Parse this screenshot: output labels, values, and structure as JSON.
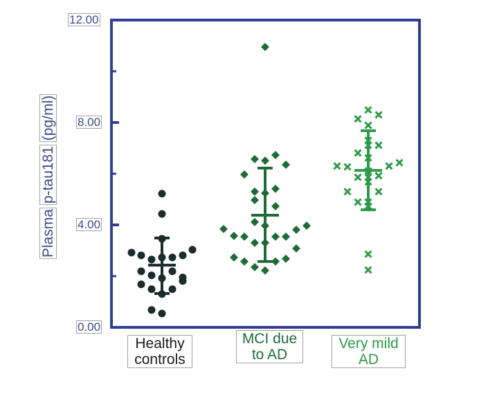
{
  "chart_data": {
    "type": "scatter",
    "subtype": "dot-plot with mean and SD bars",
    "title": "",
    "ylabel": "Plasma p-tau181 (pg/ml)",
    "ylabel_parts": [
      "Plasma",
      "p-tau181",
      "(pg/ml)"
    ],
    "xlabel": "",
    "ylim": [
      0,
      12
    ],
    "yticks": [
      0,
      4,
      8,
      12
    ],
    "ytick_labels": [
      "0.00",
      "4.00",
      "8.00",
      "12.00"
    ],
    "minor_yticks": [
      2,
      6,
      10
    ],
    "grid": false,
    "categories": [
      "Healthy controls",
      "MCI due to AD",
      "Very mild AD"
    ],
    "category_label_lines": [
      [
        "Healthy",
        "controls"
      ],
      [
        "MCI due",
        "to AD"
      ],
      [
        "Very mild",
        "AD"
      ]
    ],
    "series": [
      {
        "name": "Healthy controls",
        "marker": "circle",
        "color": "#1c2b2b",
        "mean": 2.43,
        "sd_low": 1.32,
        "sd_high": 3.49,
        "points": [
          {
            "dx": 0,
            "v": 5.22
          },
          {
            "dx": 0,
            "v": 4.43
          },
          {
            "dx": 0,
            "v": 3.46
          },
          {
            "dx": -44,
            "v": 2.92
          },
          {
            "dx": -30,
            "v": 2.81
          },
          {
            "dx": -15,
            "v": 2.65
          },
          {
            "dx": 0,
            "v": 2.73
          },
          {
            "dx": 15,
            "v": 2.73
          },
          {
            "dx": 30,
            "v": 2.81
          },
          {
            "dx": 44,
            "v": 3.03
          },
          {
            "dx": -30,
            "v": 2.19
          },
          {
            "dx": -15,
            "v": 2.03
          },
          {
            "dx": 0,
            "v": 1.92
          },
          {
            "dx": 15,
            "v": 2.19
          },
          {
            "dx": 30,
            "v": 1.95
          },
          {
            "dx": -30,
            "v": 1.68
          },
          {
            "dx": -15,
            "v": 1.49
          },
          {
            "dx": 0,
            "v": 1.3
          },
          {
            "dx": 15,
            "v": 1.49
          },
          {
            "dx": 30,
            "v": 1.81
          },
          {
            "dx": -15,
            "v": 0.68
          },
          {
            "dx": 0,
            "v": 0.54
          }
        ]
      },
      {
        "name": "MCI due to AD",
        "marker": "diamond",
        "color": "#1f6b38",
        "mean": 4.38,
        "sd_low": 2.57,
        "sd_high": 6.22,
        "points": [
          {
            "dx": 0,
            "v": 10.95
          },
          {
            "dx": -15,
            "v": 6.57
          },
          {
            "dx": 0,
            "v": 6.51
          },
          {
            "dx": 15,
            "v": 6.73
          },
          {
            "dx": 30,
            "v": 6.35
          },
          {
            "dx": -30,
            "v": 5.97
          },
          {
            "dx": -15,
            "v": 5.3
          },
          {
            "dx": 0,
            "v": 5.24
          },
          {
            "dx": 15,
            "v": 5.41
          },
          {
            "dx": -15,
            "v": 4.97
          },
          {
            "dx": 15,
            "v": 4.73
          },
          {
            "dx": -15,
            "v": 4.11
          },
          {
            "dx": 0,
            "v": 3.97
          },
          {
            "dx": -60,
            "v": 3.84
          },
          {
            "dx": -45,
            "v": 3.57
          },
          {
            "dx": -30,
            "v": 3.54
          },
          {
            "dx": 15,
            "v": 3.54
          },
          {
            "dx": 30,
            "v": 3.54
          },
          {
            "dx": 45,
            "v": 3.81
          },
          {
            "dx": 60,
            "v": 3.97
          },
          {
            "dx": -15,
            "v": 3.3
          },
          {
            "dx": 0,
            "v": 3.3
          },
          {
            "dx": 45,
            "v": 3.08
          },
          {
            "dx": -45,
            "v": 2.73
          },
          {
            "dx": -30,
            "v": 2.57
          },
          {
            "dx": 15,
            "v": 2.57
          },
          {
            "dx": 30,
            "v": 2.68
          },
          {
            "dx": -15,
            "v": 2.35
          },
          {
            "dx": 0,
            "v": 2.22
          }
        ]
      },
      {
        "name": "Very mild AD",
        "marker": "x",
        "color": "#2e9a48",
        "mean": 6.13,
        "sd_low": 4.59,
        "sd_high": 7.68,
        "points": [
          {
            "dx": 0,
            "v": 8.49
          },
          {
            "dx": -15,
            "v": 8.14
          },
          {
            "dx": 15,
            "v": 8.3
          },
          {
            "dx": 0,
            "v": 7.89
          },
          {
            "dx": 0,
            "v": 7.3
          },
          {
            "dx": 0,
            "v": 7.11
          },
          {
            "dx": 15,
            "v": 7.11
          },
          {
            "dx": -15,
            "v": 6.81
          },
          {
            "dx": 0,
            "v": 6.62
          },
          {
            "dx": -45,
            "v": 6.3
          },
          {
            "dx": -30,
            "v": 6.27
          },
          {
            "dx": 30,
            "v": 6.3
          },
          {
            "dx": 45,
            "v": 6.43
          },
          {
            "dx": 0,
            "v": 6.11
          },
          {
            "dx": -15,
            "v": 5.86
          },
          {
            "dx": 0,
            "v": 5.86
          },
          {
            "dx": 15,
            "v": 5.92
          },
          {
            "dx": 0,
            "v": 5.68
          },
          {
            "dx": -30,
            "v": 5.3
          },
          {
            "dx": 15,
            "v": 5.3
          },
          {
            "dx": -15,
            "v": 4.89
          },
          {
            "dx": 0,
            "v": 4.89
          },
          {
            "dx": 0,
            "v": 4.73
          },
          {
            "dx": 0,
            "v": 2.86
          },
          {
            "dx": 0,
            "v": 2.24
          }
        ]
      }
    ],
    "colors": {
      "axis": "#2f3f94",
      "tick_text": "#3b4a8c",
      "healthy": "#1c2b2b",
      "mci": "#1f6b38",
      "very_mild": "#2e9a48"
    }
  }
}
